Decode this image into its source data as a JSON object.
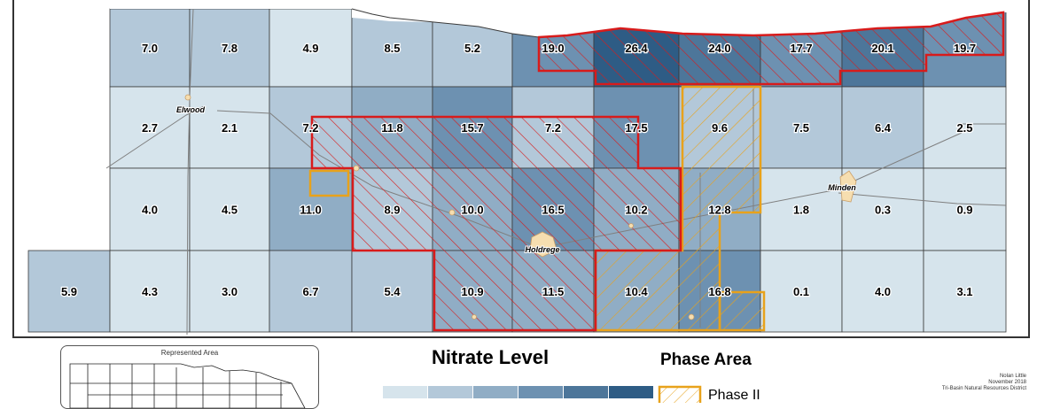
{
  "colors": {
    "c1": "#d6e4ec",
    "c2": "#b3c8d9",
    "c3": "#90adc5",
    "c4": "#6d91b1",
    "c5": "#4d769a",
    "c6": "#2e5c85",
    "phase1_outline": "#d81b1b",
    "phase2_outline": "#e8a21b"
  },
  "cells": [
    {
      "row": 0,
      "col": 1,
      "value": "7.0",
      "level": 2
    },
    {
      "row": 0,
      "col": 2,
      "value": "7.8",
      "level": 2
    },
    {
      "row": 0,
      "col": 3,
      "value": "4.9",
      "level": 1
    },
    {
      "row": 0,
      "col": 4,
      "value": "8.5",
      "level": 2
    },
    {
      "row": 0,
      "col": 5,
      "value": "5.2",
      "level": 2
    },
    {
      "row": 0,
      "col": 6,
      "value": "19.0",
      "level": 4
    },
    {
      "row": 0,
      "col": 7,
      "value": "26.4",
      "level": 6
    },
    {
      "row": 0,
      "col": 8,
      "value": "24.0",
      "level": 5
    },
    {
      "row": 0,
      "col": 9,
      "value": "17.7",
      "level": 4
    },
    {
      "row": 0,
      "col": 10,
      "value": "20.1",
      "level": 5
    },
    {
      "row": 0,
      "col": 11,
      "value": "19.7",
      "level": 4
    },
    {
      "row": 1,
      "col": 1,
      "value": "2.7",
      "level": 1
    },
    {
      "row": 1,
      "col": 2,
      "value": "2.1",
      "level": 1
    },
    {
      "row": 1,
      "col": 3,
      "value": "7.2",
      "level": 2
    },
    {
      "row": 1,
      "col": 4,
      "value": "11.8",
      "level": 3
    },
    {
      "row": 1,
      "col": 5,
      "value": "15.7",
      "level": 4
    },
    {
      "row": 1,
      "col": 6,
      "value": "7.2",
      "level": 2
    },
    {
      "row": 1,
      "col": 7,
      "value": "17.5",
      "level": 4
    },
    {
      "row": 1,
      "col": 8,
      "value": "9.6",
      "level": 2
    },
    {
      "row": 1,
      "col": 9,
      "value": "7.5",
      "level": 2
    },
    {
      "row": 1,
      "col": 10,
      "value": "6.4",
      "level": 2
    },
    {
      "row": 1,
      "col": 11,
      "value": "2.5",
      "level": 1
    },
    {
      "row": 2,
      "col": 1,
      "value": "4.0",
      "level": 1
    },
    {
      "row": 2,
      "col": 2,
      "value": "4.5",
      "level": 1
    },
    {
      "row": 2,
      "col": 3,
      "value": "11.0",
      "level": 3
    },
    {
      "row": 2,
      "col": 4,
      "value": "8.9",
      "level": 2
    },
    {
      "row": 2,
      "col": 5,
      "value": "10.0",
      "level": 3
    },
    {
      "row": 2,
      "col": 6,
      "value": "16.5",
      "level": 4
    },
    {
      "row": 2,
      "col": 7,
      "value": "10.2",
      "level": 3
    },
    {
      "row": 2,
      "col": 8,
      "value": "12.8",
      "level": 3
    },
    {
      "row": 2,
      "col": 9,
      "value": "1.8",
      "level": 1
    },
    {
      "row": 2,
      "col": 10,
      "value": "0.3",
      "level": 1
    },
    {
      "row": 2,
      "col": 11,
      "value": "0.9",
      "level": 1
    },
    {
      "row": 3,
      "col": 0,
      "value": "5.9",
      "level": 2
    },
    {
      "row": 3,
      "col": 1,
      "value": "4.3",
      "level": 1
    },
    {
      "row": 3,
      "col": 2,
      "value": "3.0",
      "level": 1
    },
    {
      "row": 3,
      "col": 3,
      "value": "6.7",
      "level": 2
    },
    {
      "row": 3,
      "col": 4,
      "value": "5.4",
      "level": 2
    },
    {
      "row": 3,
      "col": 5,
      "value": "10.9",
      "level": 3
    },
    {
      "row": 3,
      "col": 6,
      "value": "11.5",
      "level": 3
    },
    {
      "row": 3,
      "col": 7,
      "value": "10.4",
      "level": 3
    },
    {
      "row": 3,
      "col": 8,
      "value": "16.8",
      "level": 4
    },
    {
      "row": 3,
      "col": 9,
      "value": "0.1",
      "level": 1
    },
    {
      "row": 3,
      "col": 10,
      "value": "4.0",
      "level": 1
    },
    {
      "row": 3,
      "col": 11,
      "value": "3.1",
      "level": 1
    }
  ],
  "towns": [
    "Elwood",
    "Holdrege",
    "Minden"
  ],
  "inset": {
    "title": "Represented Area"
  },
  "legend": {
    "title": "Nitrate Level",
    "levels": 6
  },
  "phase_legend": {
    "title": "Phase Area",
    "label": "Phase II"
  },
  "credits": [
    "Nolan Little",
    "November 2018",
    "Tri-Basin Natural Resources District"
  ]
}
